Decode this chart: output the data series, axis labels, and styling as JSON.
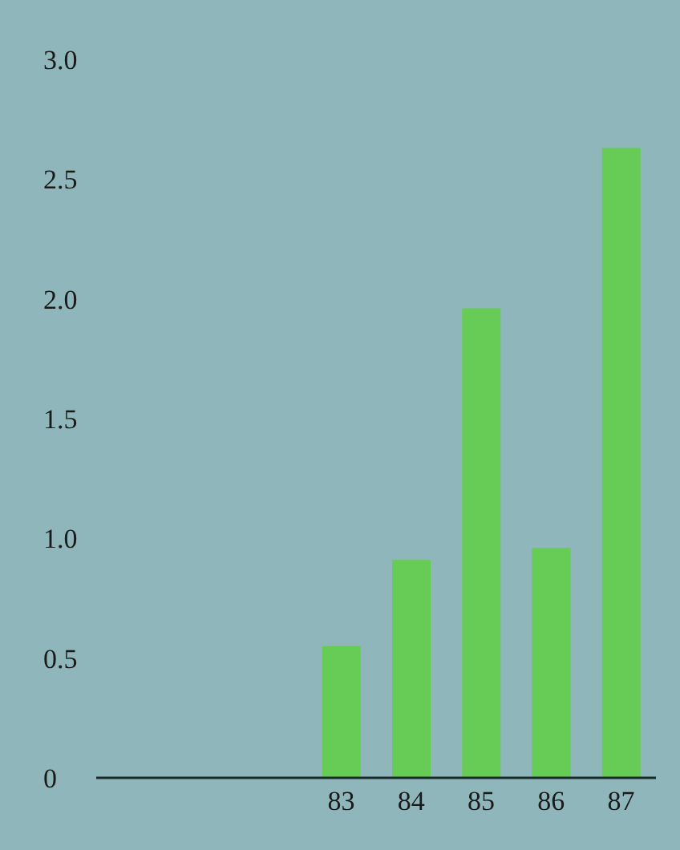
{
  "chart_data": {
    "type": "bar",
    "categories": [
      null,
      null,
      null,
      "83",
      "84",
      "85",
      "86",
      "87"
    ],
    "values": [
      null,
      null,
      null,
      0.55,
      0.91,
      1.96,
      0.96,
      2.63
    ],
    "color": "#66cc55",
    "ylim": [
      0,
      3
    ],
    "yticks": [
      0,
      0.5,
      {
        "value": 1,
        "label": "1.0"
      },
      1.5,
      {
        "value": 2,
        "label": "2.0"
      },
      2.5,
      {
        "value": 3,
        "label": "3.0"
      }
    ],
    "grid": false
  }
}
